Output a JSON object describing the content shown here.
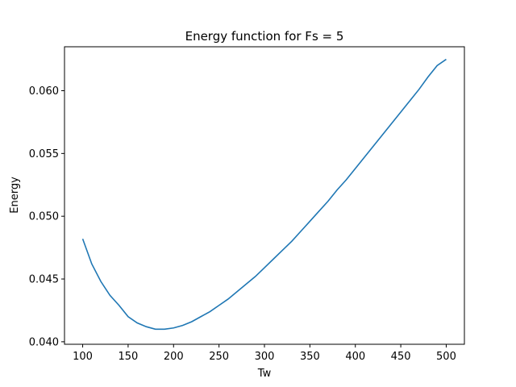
{
  "chart_data": {
    "type": "line",
    "title": "Energy function for Fs = 5",
    "xlabel": "Tw",
    "ylabel": "Energy",
    "xlim": [
      80,
      520
    ],
    "ylim": [
      0.0398,
      0.0635
    ],
    "grid": false,
    "x_ticks": [
      100,
      150,
      200,
      250,
      300,
      350,
      400,
      450,
      500
    ],
    "x_tick_labels": [
      "100",
      "150",
      "200",
      "250",
      "300",
      "350",
      "400",
      "450",
      "500"
    ],
    "y_ticks": [
      0.04,
      0.045,
      0.05,
      0.055,
      0.06
    ],
    "y_tick_labels": [
      "0.040",
      "0.045",
      "0.050",
      "0.055",
      "0.060"
    ],
    "colors": {
      "line": "#1f77b4",
      "axes": "#000000"
    },
    "series": [
      {
        "x": [
          100,
          110,
          120,
          130,
          140,
          150,
          160,
          170,
          180,
          190,
          200,
          210,
          220,
          230,
          240,
          250,
          260,
          270,
          280,
          290,
          300,
          310,
          320,
          330,
          340,
          350,
          360,
          370,
          380,
          390,
          400,
          410,
          420,
          430,
          440,
          450,
          460,
          470,
          480,
          490,
          500
        ],
        "values": [
          0.0482,
          0.0462,
          0.0448,
          0.0437,
          0.0429,
          0.042,
          0.0415,
          0.0412,
          0.041,
          0.041,
          0.0411,
          0.0413,
          0.0416,
          0.042,
          0.0424,
          0.0429,
          0.0434,
          0.044,
          0.0446,
          0.0452,
          0.0459,
          0.0466,
          0.0473,
          0.048,
          0.0488,
          0.0496,
          0.0504,
          0.0512,
          0.0521,
          0.0529,
          0.0538,
          0.0547,
          0.0556,
          0.0565,
          0.0574,
          0.0583,
          0.0592,
          0.0601,
          0.0611,
          0.062,
          0.0625
        ]
      }
    ]
  }
}
